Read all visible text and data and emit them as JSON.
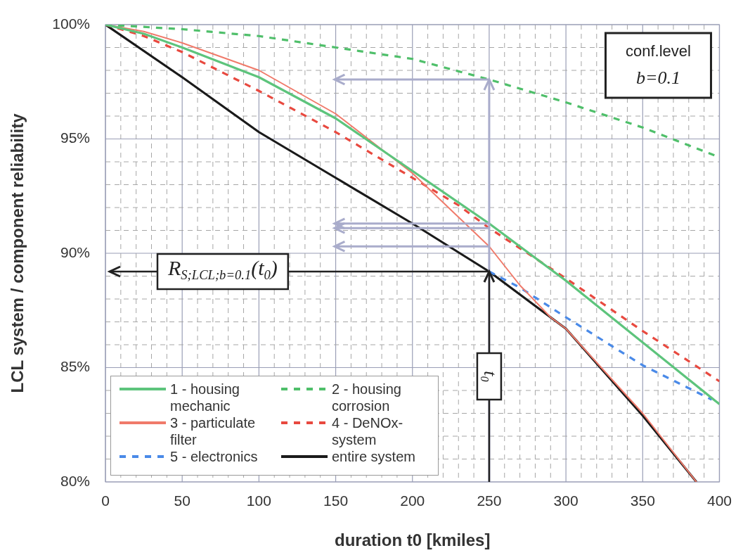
{
  "chart_data": {
    "type": "line",
    "xlabel": "duration t0 [kmiles]",
    "ylabel": "LCL system / component reliability",
    "xlim": [
      0,
      400
    ],
    "ylim": [
      80,
      100
    ],
    "xticks": [
      0,
      {
        "value": 10,
        "label": null
      },
      {
        "value": 20,
        "label": null
      },
      {
        "value": 30,
        "label": null
      },
      {
        "value": 40,
        "label": null
      },
      50,
      {
        "value": 60,
        "label": null
      },
      {
        "value": 70,
        "label": null
      },
      {
        "value": 80,
        "label": null
      },
      {
        "value": 90,
        "label": null
      },
      100,
      {
        "value": 110,
        "label": null
      },
      {
        "value": 120,
        "label": null
      },
      {
        "value": 130,
        "label": null
      },
      {
        "value": 140,
        "label": null
      },
      150,
      {
        "value": 160,
        "label": null
      },
      {
        "value": 170,
        "label": null
      },
      {
        "value": 180,
        "label": null
      },
      {
        "value": 190,
        "label": null
      },
      200,
      {
        "value": 210,
        "label": null
      },
      {
        "value": 220,
        "label": null
      },
      {
        "value": 230,
        "label": null
      },
      {
        "value": 240,
        "label": null
      },
      250,
      {
        "value": 260,
        "label": null
      },
      {
        "value": 270,
        "label": null
      },
      {
        "value": 280,
        "label": null
      },
      {
        "value": 290,
        "label": null
      },
      300,
      {
        "value": 310,
        "label": null
      },
      {
        "value": 320,
        "label": null
      },
      {
        "value": 330,
        "label": null
      },
      {
        "value": 340,
        "label": null
      },
      350,
      {
        "value": 360,
        "label": null
      },
      {
        "value": 370,
        "label": null
      },
      {
        "value": 380,
        "label": null
      },
      {
        "value": 390,
        "label": null
      },
      400
    ],
    "yticks": [
      {
        "value": 80,
        "label": "80%"
      },
      {
        "value": 81,
        "label": null
      },
      {
        "value": 82,
        "label": null
      },
      {
        "value": 83,
        "label": null
      },
      {
        "value": 84,
        "label": null
      },
      {
        "value": 85,
        "label": "85%"
      },
      {
        "value": 86,
        "label": null
      },
      {
        "value": 87,
        "label": null
      },
      {
        "value": 88,
        "label": null
      },
      {
        "value": 89,
        "label": null
      },
      {
        "value": 90,
        "label": "90%"
      },
      {
        "value": 91,
        "label": null
      },
      {
        "value": 92,
        "label": null
      },
      {
        "value": 93,
        "label": null
      },
      {
        "value": 94,
        "label": null
      },
      {
        "value": 95,
        "label": "95%"
      },
      {
        "value": 96,
        "label": null
      },
      {
        "value": 97,
        "label": null
      },
      {
        "value": 98,
        "label": null
      },
      {
        "value": 99,
        "label": null
      },
      {
        "value": 100,
        "label": "100%"
      }
    ],
    "grid": true,
    "legend": "bottom left",
    "marker": "none",
    "series": [
      {
        "name": "1 - housing mechanic",
        "color": "#5dc47c",
        "line_style": "solid",
        "x": [
          0,
          25,
          50,
          100,
          150,
          200,
          250,
          300,
          350,
          400
        ],
        "values": [
          100,
          99.6,
          99.0,
          97.7,
          95.9,
          93.6,
          91.3,
          88.8,
          86.1,
          83.4
        ]
      },
      {
        "name": "2 - housing corrosion",
        "color": "#4fbf6a",
        "line_style": "dashed",
        "x": [
          0,
          50,
          100,
          150,
          200,
          250,
          300,
          350,
          400
        ],
        "values": [
          100,
          99.8,
          99.5,
          99.0,
          98.5,
          97.6,
          96.6,
          95.5,
          94.2
        ]
      },
      {
        "name": "3 - particulate filter",
        "color": "#f07a6a",
        "line_style": "solid",
        "x": [
          0,
          25,
          50,
          100,
          150,
          200,
          250,
          270,
          290,
          300,
          350,
          385
        ],
        "values": [
          100,
          99.7,
          99.2,
          98.0,
          96.1,
          93.5,
          90.3,
          88.6,
          87.2,
          86.7,
          83.0,
          80.0
        ]
      },
      {
        "name": "4 - DeNOx-system",
        "color": "#e8493f",
        "line_style": "dashed",
        "x": [
          0,
          25,
          50,
          100,
          150,
          200,
          230,
          250,
          300,
          350,
          400
        ],
        "values": [
          100,
          99.5,
          98.8,
          97.1,
          95.3,
          93.3,
          92.1,
          91.1,
          88.9,
          86.6,
          84.4
        ]
      },
      {
        "name": "5 - electronics",
        "color": "#4a8ae8",
        "line_style": "dashed",
        "x": [
          250,
          270,
          300,
          350,
          395
        ],
        "values": [
          89.2,
          88.5,
          87.2,
          85.1,
          83.6
        ]
      },
      {
        "name": "entire system",
        "color": "#1a1a1a",
        "line_style": "solid",
        "x": [
          0,
          50,
          100,
          150,
          200,
          250,
          300,
          350,
          385
        ],
        "values": [
          100,
          97.7,
          95.3,
          93.3,
          91.3,
          89.2,
          86.7,
          82.9,
          80.0
        ]
      }
    ],
    "ref_lines": [
      {
        "axis": "x",
        "value": 250,
        "color": "#a9accb"
      },
      {
        "axis": "x",
        "value": 250,
        "label": "t$_{0}$",
        "color": "#222222"
      },
      {
        "axis": "y",
        "value": 89.2,
        "color": "#222222"
      }
    ],
    "annotations": [
      "conf.level",
      "b=0.1",
      "R$_{S;LCL;b=0.1}$(t$_{0}$)"
    ]
  }
}
